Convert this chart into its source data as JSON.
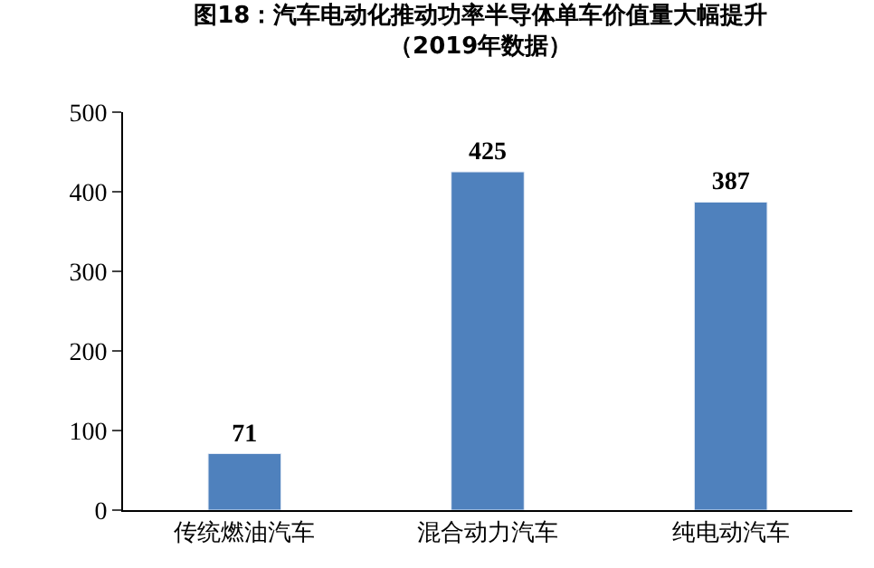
{
  "chart_data": {
    "type": "bar",
    "title": "图18：汽车电动化推动功率半导体单车价值量大幅提升",
    "subtitle": "（2019年数据）",
    "categories": [
      "传统燃油汽车",
      "混合动力汽车",
      "纯电动汽车"
    ],
    "values": [
      71,
      425,
      387
    ],
    "color": "#4f81bd",
    "ylim": [
      0,
      500
    ],
    "yticks": [
      0,
      100,
      200,
      300,
      400,
      500
    ],
    "data_labels": true,
    "legend": false
  }
}
